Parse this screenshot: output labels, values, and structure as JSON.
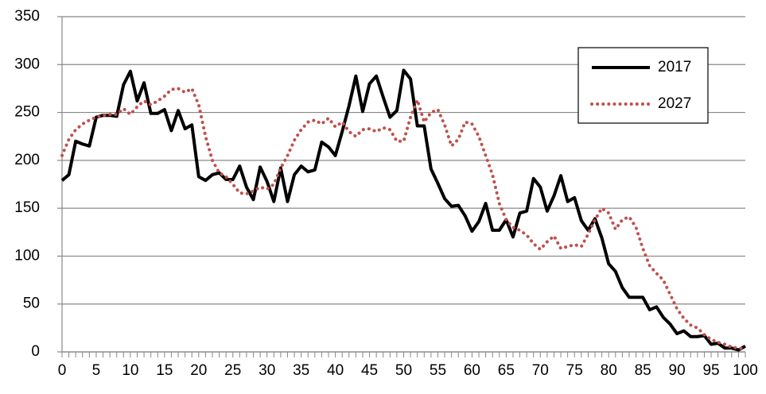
{
  "chart_data": {
    "type": "line",
    "x": [
      0,
      1,
      2,
      3,
      4,
      5,
      6,
      7,
      8,
      9,
      10,
      11,
      12,
      13,
      14,
      15,
      16,
      17,
      18,
      19,
      20,
      21,
      22,
      23,
      24,
      25,
      26,
      27,
      28,
      29,
      30,
      31,
      32,
      33,
      34,
      35,
      36,
      37,
      38,
      39,
      40,
      41,
      42,
      43,
      44,
      45,
      46,
      47,
      48,
      49,
      50,
      51,
      52,
      53,
      54,
      55,
      56,
      57,
      58,
      59,
      60,
      61,
      62,
      63,
      64,
      65,
      66,
      67,
      68,
      69,
      70,
      71,
      72,
      73,
      74,
      75,
      76,
      77,
      78,
      79,
      80,
      81,
      82,
      83,
      84,
      85,
      86,
      87,
      88,
      89,
      90,
      91,
      92,
      93,
      94,
      95,
      96,
      97,
      98,
      99,
      100
    ],
    "series": [
      {
        "name": "2017",
        "color": "#000000",
        "dash": false,
        "values": [
          179,
          185,
          220,
          217,
          215,
          245,
          247,
          247,
          246,
          279,
          293,
          262,
          281,
          249,
          249,
          253,
          231,
          252,
          233,
          237,
          183,
          179,
          185,
          187,
          180,
          180,
          194,
          172,
          159,
          193,
          178,
          157,
          192,
          157,
          185,
          194,
          188,
          190,
          219,
          214,
          205,
          230,
          257,
          288,
          251,
          280,
          288,
          266,
          245,
          252,
          294,
          285,
          236,
          236,
          191,
          176,
          160,
          152,
          153,
          142,
          126,
          136,
          155,
          127,
          127,
          138,
          120,
          145,
          147,
          181,
          172,
          147,
          163,
          184,
          157,
          161,
          137,
          127,
          139,
          119,
          92,
          84,
          67,
          57,
          57,
          57,
          44,
          47,
          36,
          29,
          19,
          22,
          16,
          16,
          17,
          8,
          9,
          4,
          4,
          2,
          6
        ]
      },
      {
        "name": "2027",
        "color": "#c0504d",
        "dash": true,
        "values": [
          205,
          222,
          232,
          238,
          242,
          245,
          247,
          248,
          248,
          254,
          248,
          256,
          262,
          258,
          262,
          267,
          274,
          275,
          271,
          275,
          258,
          225,
          200,
          187,
          183,
          175,
          166,
          165,
          168,
          172,
          170,
          175,
          192,
          205,
          221,
          232,
          240,
          242,
          238,
          244,
          235,
          240,
          230,
          225,
          232,
          233,
          230,
          234,
          232,
          220,
          220,
          245,
          263,
          240,
          250,
          253,
          237,
          215,
          222,
          240,
          238,
          225,
          205,
          185,
          155,
          138,
          130,
          127,
          122,
          113,
          107,
          115,
          121,
          108,
          110,
          112,
          110,
          123,
          138,
          150,
          145,
          128,
          138,
          141,
          130,
          108,
          90,
          82,
          75,
          60,
          45,
          35,
          28,
          25,
          18,
          13,
          10,
          8,
          5,
          4,
          3
        ]
      }
    ],
    "xlim": [
      0,
      100
    ],
    "xticks": [
      0,
      5,
      10,
      15,
      20,
      25,
      30,
      35,
      40,
      45,
      50,
      55,
      60,
      65,
      70,
      75,
      80,
      85,
      90,
      95,
      100
    ],
    "ylim": [
      0,
      350
    ],
    "yticks": [
      0,
      50,
      100,
      150,
      200,
      250,
      300,
      350
    ],
    "grid": true,
    "legend": "upper right"
  }
}
